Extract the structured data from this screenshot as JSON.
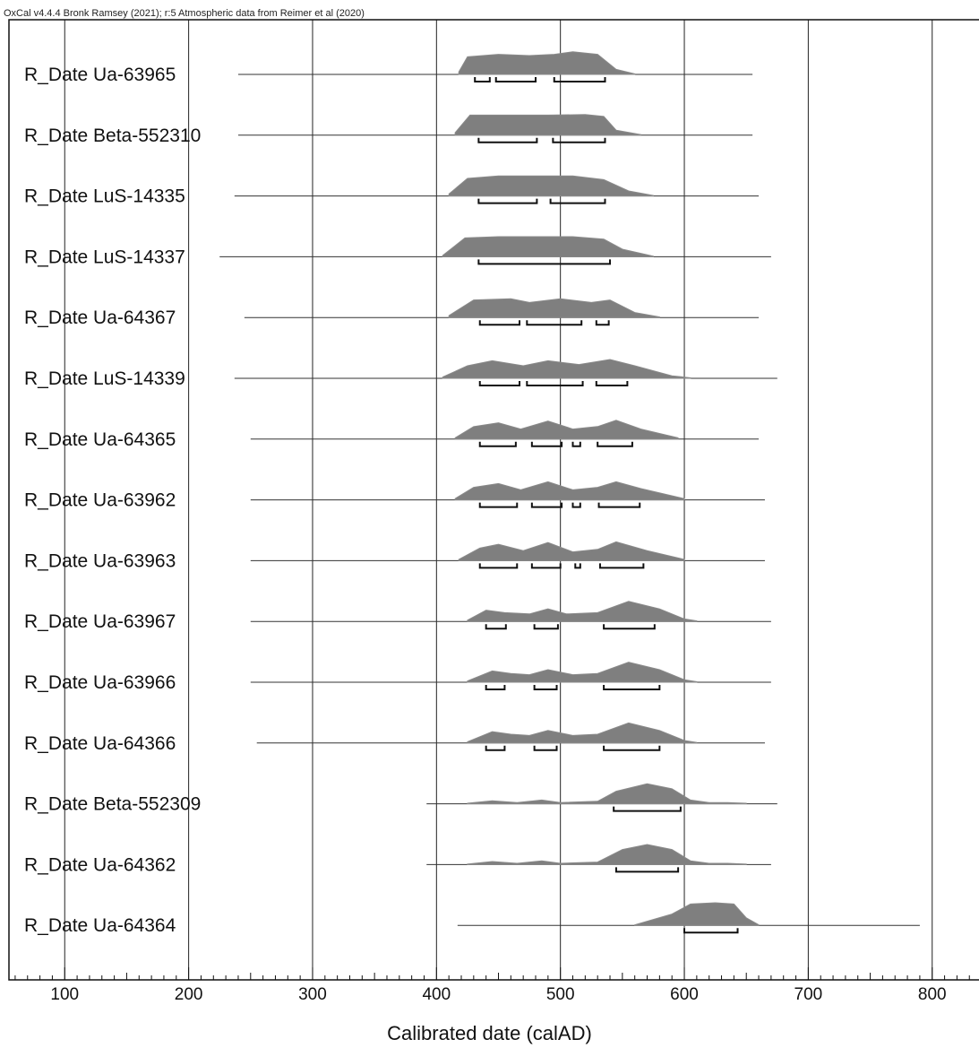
{
  "header": "OxCal v4.4.4 Bronk Ramsey (2021); r:5 Atmospheric data from Reimer et al (2020)",
  "chart_data": {
    "type": "area",
    "title": "",
    "xlabel": "Calibrated date (calAD)",
    "ylabel": "",
    "xlim": [
      55,
      845
    ],
    "x_ticks": [
      100,
      200,
      300,
      400,
      500,
      600,
      700,
      800
    ],
    "grid": true,
    "series": [
      {
        "name": "R_Date Ua-63965",
        "line": [
          240,
          655
        ],
        "density": [
          [
            418,
            0.1
          ],
          [
            425,
            0.7
          ],
          [
            450,
            0.8
          ],
          [
            475,
            0.75
          ],
          [
            495,
            0.8
          ],
          [
            510,
            0.9
          ],
          [
            530,
            0.8
          ],
          [
            545,
            0.2
          ],
          [
            560,
            0.02
          ]
        ],
        "ranges": [
          [
            431,
            443
          ],
          [
            448,
            480
          ],
          [
            495,
            536
          ]
        ]
      },
      {
        "name": "R_Date Beta-552310",
        "line": [
          240,
          655
        ],
        "density": [
          [
            415,
            0.1
          ],
          [
            427,
            0.8
          ],
          [
            460,
            0.8
          ],
          [
            490,
            0.8
          ],
          [
            520,
            0.82
          ],
          [
            535,
            0.75
          ],
          [
            545,
            0.2
          ],
          [
            565,
            0.02
          ]
        ],
        "ranges": [
          [
            434,
            481
          ],
          [
            494,
            536
          ]
        ]
      },
      {
        "name": "R_Date LuS-14335",
        "line": [
          237,
          660
        ],
        "density": [
          [
            410,
            0.08
          ],
          [
            425,
            0.7
          ],
          [
            450,
            0.8
          ],
          [
            480,
            0.8
          ],
          [
            510,
            0.8
          ],
          [
            535,
            0.65
          ],
          [
            555,
            0.2
          ],
          [
            575,
            0.02
          ]
        ],
        "ranges": [
          [
            434,
            481
          ],
          [
            492,
            536
          ]
        ]
      },
      {
        "name": "R_Date LuS-14337",
        "line": [
          225,
          670
        ],
        "density": [
          [
            405,
            0.05
          ],
          [
            423,
            0.75
          ],
          [
            450,
            0.8
          ],
          [
            480,
            0.8
          ],
          [
            510,
            0.8
          ],
          [
            535,
            0.7
          ],
          [
            550,
            0.3
          ],
          [
            575,
            0.02
          ]
        ],
        "ranges": [
          [
            434,
            540
          ]
        ]
      },
      {
        "name": "R_Date Ua-64367",
        "line": [
          245,
          660
        ],
        "density": [
          [
            410,
            0.08
          ],
          [
            430,
            0.7
          ],
          [
            460,
            0.75
          ],
          [
            475,
            0.6
          ],
          [
            500,
            0.75
          ],
          [
            525,
            0.6
          ],
          [
            540,
            0.7
          ],
          [
            560,
            0.2
          ],
          [
            580,
            0.02
          ]
        ],
        "ranges": [
          [
            435,
            467
          ],
          [
            473,
            517
          ],
          [
            529,
            539
          ]
        ]
      },
      {
        "name": "R_Date LuS-14339",
        "line": [
          237,
          675
        ],
        "density": [
          [
            405,
            0.05
          ],
          [
            425,
            0.5
          ],
          [
            445,
            0.7
          ],
          [
            470,
            0.5
          ],
          [
            490,
            0.7
          ],
          [
            515,
            0.55
          ],
          [
            540,
            0.75
          ],
          [
            560,
            0.5
          ],
          [
            590,
            0.1
          ],
          [
            605,
            0.02
          ]
        ],
        "ranges": [
          [
            435,
            467
          ],
          [
            473,
            518
          ],
          [
            529,
            554
          ]
        ]
      },
      {
        "name": "R_Date Ua-64365",
        "line": [
          250,
          660
        ],
        "density": [
          [
            415,
            0.05
          ],
          [
            430,
            0.5
          ],
          [
            450,
            0.65
          ],
          [
            468,
            0.4
          ],
          [
            490,
            0.72
          ],
          [
            510,
            0.4
          ],
          [
            530,
            0.5
          ],
          [
            545,
            0.75
          ],
          [
            565,
            0.4
          ],
          [
            595,
            0.05
          ]
        ],
        "ranges": [
          [
            435,
            464
          ],
          [
            477,
            501
          ],
          [
            510,
            516
          ],
          [
            530,
            558
          ]
        ]
      },
      {
        "name": "R_Date Ua-63962",
        "line": [
          250,
          665
        ],
        "density": [
          [
            415,
            0.05
          ],
          [
            430,
            0.5
          ],
          [
            450,
            0.65
          ],
          [
            468,
            0.4
          ],
          [
            490,
            0.72
          ],
          [
            510,
            0.4
          ],
          [
            530,
            0.5
          ],
          [
            545,
            0.72
          ],
          [
            565,
            0.45
          ],
          [
            600,
            0.05
          ]
        ],
        "ranges": [
          [
            435,
            465
          ],
          [
            477,
            501
          ],
          [
            510,
            516
          ],
          [
            531,
            564
          ]
        ]
      },
      {
        "name": "R_Date Ua-63963",
        "line": [
          250,
          665
        ],
        "density": [
          [
            418,
            0.05
          ],
          [
            435,
            0.5
          ],
          [
            450,
            0.65
          ],
          [
            470,
            0.4
          ],
          [
            490,
            0.72
          ],
          [
            510,
            0.35
          ],
          [
            530,
            0.45
          ],
          [
            545,
            0.75
          ],
          [
            570,
            0.4
          ],
          [
            600,
            0.05
          ]
        ],
        "ranges": [
          [
            435,
            465
          ],
          [
            477,
            500
          ],
          [
            512,
            516
          ],
          [
            532,
            567
          ]
        ]
      },
      {
        "name": "R_Date Ua-63967",
        "line": [
          250,
          670
        ],
        "density": [
          [
            425,
            0.05
          ],
          [
            440,
            0.45
          ],
          [
            455,
            0.35
          ],
          [
            475,
            0.3
          ],
          [
            490,
            0.5
          ],
          [
            505,
            0.3
          ],
          [
            530,
            0.35
          ],
          [
            555,
            0.8
          ],
          [
            580,
            0.5
          ],
          [
            600,
            0.1
          ],
          [
            610,
            0.02
          ]
        ],
        "ranges": [
          [
            440,
            456
          ],
          [
            479,
            498
          ],
          [
            535,
            576
          ]
        ]
      },
      {
        "name": "R_Date Ua-63966",
        "line": [
          250,
          670
        ],
        "density": [
          [
            425,
            0.05
          ],
          [
            445,
            0.45
          ],
          [
            460,
            0.35
          ],
          [
            475,
            0.3
          ],
          [
            490,
            0.5
          ],
          [
            510,
            0.3
          ],
          [
            530,
            0.35
          ],
          [
            555,
            0.8
          ],
          [
            580,
            0.5
          ],
          [
            600,
            0.1
          ],
          [
            610,
            0.02
          ]
        ],
        "ranges": [
          [
            440,
            455
          ],
          [
            479,
            497
          ],
          [
            535,
            580
          ]
        ]
      },
      {
        "name": "R_Date Ua-64366",
        "line": [
          255,
          665
        ],
        "density": [
          [
            425,
            0.05
          ],
          [
            445,
            0.45
          ],
          [
            460,
            0.35
          ],
          [
            475,
            0.3
          ],
          [
            490,
            0.5
          ],
          [
            510,
            0.3
          ],
          [
            530,
            0.35
          ],
          [
            555,
            0.8
          ],
          [
            580,
            0.5
          ],
          [
            600,
            0.1
          ],
          [
            610,
            0.02
          ]
        ],
        "ranges": [
          [
            440,
            455
          ],
          [
            479,
            497
          ],
          [
            535,
            580
          ]
        ]
      },
      {
        "name": "R_Date Beta-552309",
        "line": [
          392,
          675
        ],
        "density": [
          [
            425,
            0.02
          ],
          [
            445,
            0.12
          ],
          [
            465,
            0.05
          ],
          [
            485,
            0.15
          ],
          [
            500,
            0.05
          ],
          [
            530,
            0.1
          ],
          [
            545,
            0.5
          ],
          [
            570,
            0.8
          ],
          [
            590,
            0.6
          ],
          [
            605,
            0.15
          ],
          [
            620,
            0.05
          ],
          [
            635,
            0.05
          ],
          [
            650,
            0.02
          ]
        ],
        "ranges": [
          [
            543,
            597
          ]
        ]
      },
      {
        "name": "R_Date Ua-64362",
        "line": [
          392,
          670
        ],
        "density": [
          [
            425,
            0.02
          ],
          [
            445,
            0.12
          ],
          [
            465,
            0.05
          ],
          [
            485,
            0.15
          ],
          [
            500,
            0.05
          ],
          [
            530,
            0.1
          ],
          [
            550,
            0.6
          ],
          [
            570,
            0.8
          ],
          [
            590,
            0.6
          ],
          [
            605,
            0.15
          ],
          [
            620,
            0.05
          ],
          [
            635,
            0.05
          ],
          [
            650,
            0.02
          ]
        ],
        "ranges": [
          [
            545,
            595
          ]
        ]
      },
      {
        "name": "R_Date Ua-64364",
        "line": [
          417,
          790
        ],
        "density": [
          [
            560,
            0.02
          ],
          [
            590,
            0.45
          ],
          [
            605,
            0.85
          ],
          [
            625,
            0.9
          ],
          [
            640,
            0.85
          ],
          [
            650,
            0.3
          ],
          [
            660,
            0.02
          ]
        ],
        "ranges": [
          [
            600,
            643
          ]
        ]
      }
    ]
  }
}
